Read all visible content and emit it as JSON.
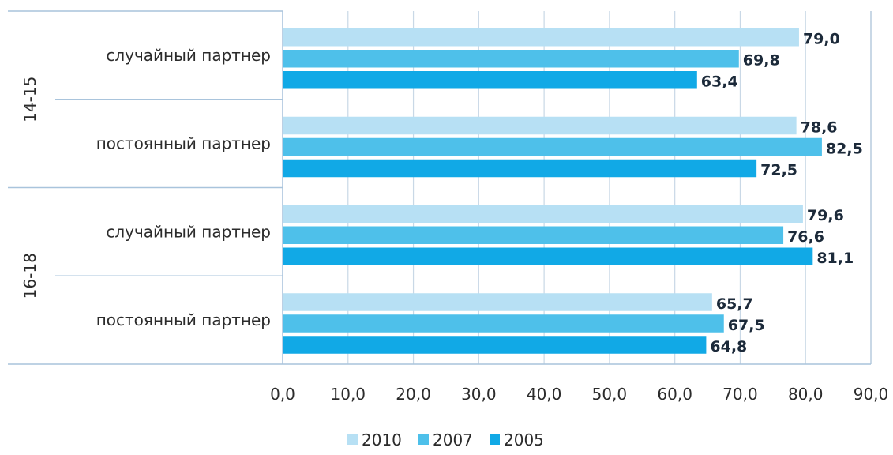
{
  "chart_data": {
    "type": "bar",
    "orientation": "horizontal",
    "title": "",
    "xlabel": "",
    "ylabel": "",
    "xlim": [
      0,
      90
    ],
    "x_ticks": [
      "0,0",
      "10,0",
      "20,0",
      "30,0",
      "40,0",
      "50,0",
      "60,0",
      "70,0",
      "80,0",
      "90,0"
    ],
    "grid": true,
    "legend_position": "bottom",
    "groups": [
      {
        "label": "14-15",
        "categories": [
          "случайный партнер",
          "постоянный партнер"
        ]
      },
      {
        "label": "16-18",
        "categories": [
          "случайный партнер",
          "постоянный партнер"
        ]
      }
    ],
    "categories": [
      "случайный партнер",
      "постоянный партнер",
      "случайный партнер",
      "постоянный партнер"
    ],
    "series": [
      {
        "name": "2010",
        "color": "#b7e0f4",
        "values": [
          79.0,
          78.6,
          79.6,
          65.7
        ],
        "labels": [
          "79,0",
          "78,6",
          "79,6",
          "65,7"
        ]
      },
      {
        "name": "2007",
        "color": "#4ec0ea",
        "values": [
          69.8,
          82.5,
          76.6,
          67.5
        ],
        "labels": [
          "69,8",
          "82,5",
          "76,6",
          "67,5"
        ]
      },
      {
        "name": "2005",
        "color": "#11a9e6",
        "values": [
          63.4,
          72.5,
          81.1,
          64.8
        ],
        "labels": [
          "63,4",
          "72,5",
          "81,1",
          "64,8"
        ]
      }
    ],
    "colors": {
      "grid": "#c9d8e6",
      "axis": "#a9c4dc",
      "text": "#2b2b2b",
      "value_text": "#1c2a3a"
    }
  }
}
